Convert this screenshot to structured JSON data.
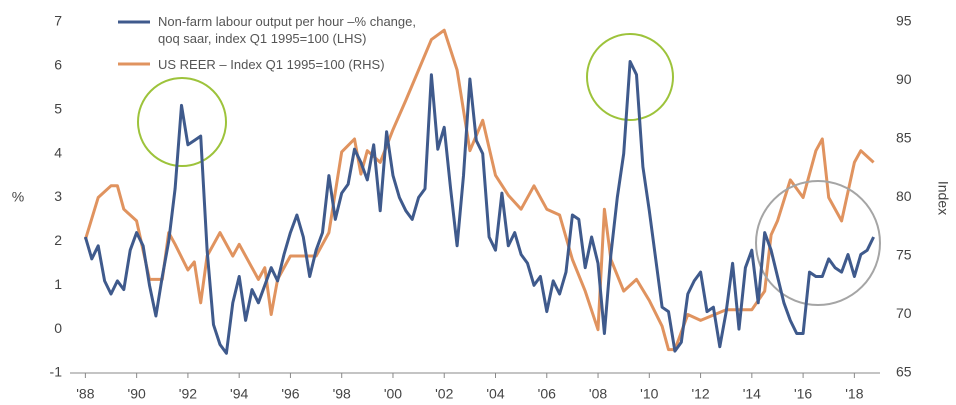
{
  "chart_data": {
    "type": "line",
    "ylabel": "%",
    "y2label": "Index",
    "xlim": [
      1987.4,
      2019.0
    ],
    "xticks": [
      {
        "value": 1988,
        "label": "'88"
      },
      {
        "value": 1990,
        "label": "'90"
      },
      {
        "value": 1992,
        "label": "'92"
      },
      {
        "value": 1994,
        "label": "'94"
      },
      {
        "value": 1996,
        "label": "'96"
      },
      {
        "value": 1998,
        "label": "'98"
      },
      {
        "value": 2000,
        "label": "'00"
      },
      {
        "value": 2002,
        "label": "'02"
      },
      {
        "value": 2004,
        "label": "'04"
      },
      {
        "value": 2006,
        "label": "'06"
      },
      {
        "value": 2008,
        "label": "'08"
      },
      {
        "value": 2010,
        "label": "'10"
      },
      {
        "value": 2012,
        "label": "'12"
      },
      {
        "value": 2014,
        "label": "'14"
      },
      {
        "value": 2016,
        "label": "'16"
      },
      {
        "value": 2018,
        "label": "'18"
      }
    ],
    "ylim": [
      -1,
      7
    ],
    "yticks": [
      -1,
      0,
      1,
      2,
      3,
      4,
      5,
      6,
      7
    ],
    "y2lim": [
      65,
      95
    ],
    "y2ticks": [
      65,
      70,
      75,
      80,
      85,
      90,
      95
    ],
    "grid": false,
    "legend": "upper left",
    "series": [
      {
        "name": "Non-farm labour output per hour –% change, qoq saar, index Q1 1995=100 (LHS)",
        "color": "#3f5a8c",
        "axis": "y",
        "x": [
          1988,
          1988.25,
          1988.5,
          1988.75,
          1989,
          1989.25,
          1989.5,
          1989.75,
          1990,
          1990.25,
          1990.5,
          1990.75,
          1991,
          1991.25,
          1991.5,
          1991.75,
          1992,
          1992.25,
          1992.5,
          1992.75,
          1993,
          1993.25,
          1993.5,
          1993.75,
          1994,
          1994.25,
          1994.5,
          1994.75,
          1995,
          1995.25,
          1995.5,
          1995.75,
          1996,
          1996.25,
          1996.5,
          1996.75,
          1997,
          1997.25,
          1997.5,
          1997.75,
          1998,
          1998.25,
          1998.5,
          1998.75,
          1999,
          1999.25,
          1999.5,
          1999.75,
          2000,
          2000.25,
          2000.5,
          2000.75,
          2001,
          2001.25,
          2001.5,
          2001.75,
          2002,
          2002.25,
          2002.5,
          2002.75,
          2003,
          2003.25,
          2003.5,
          2003.75,
          2004,
          2004.25,
          2004.5,
          2004.75,
          2005,
          2005.25,
          2005.5,
          2005.75,
          2006,
          2006.25,
          2006.5,
          2006.75,
          2007,
          2007.25,
          2007.5,
          2007.75,
          2008,
          2008.25,
          2008.5,
          2008.75,
          2009,
          2009.25,
          2009.5,
          2009.75,
          2010,
          2010.25,
          2010.5,
          2010.75,
          2011,
          2011.25,
          2011.5,
          2011.75,
          2012,
          2012.25,
          2012.5,
          2012.75,
          2013,
          2013.25,
          2013.5,
          2013.75,
          2014,
          2014.25,
          2014.5,
          2014.75,
          2015,
          2015.25,
          2015.5,
          2015.75,
          2016,
          2016.25,
          2016.5,
          2016.75,
          2017,
          2017.25,
          2017.5,
          2017.75,
          2018,
          2018.25,
          2018.5,
          2018.75
        ],
        "values": [
          2.1,
          1.6,
          1.9,
          1.1,
          0.8,
          1.1,
          0.9,
          1.8,
          2.2,
          1.9,
          1.0,
          0.3,
          1.2,
          2.0,
          3.2,
          5.1,
          4.2,
          4.3,
          4.4,
          1.8,
          0.1,
          -0.35,
          -0.55,
          0.6,
          1.2,
          0.2,
          0.9,
          0.6,
          1.0,
          1.4,
          1.1,
          1.7,
          2.2,
          2.6,
          2.1,
          1.2,
          1.8,
          2.2,
          3.5,
          2.5,
          3.1,
          3.3,
          4.1,
          3.8,
          3.4,
          4.2,
          2.7,
          4.5,
          3.5,
          3.0,
          2.7,
          2.5,
          3.0,
          3.2,
          5.8,
          4.1,
          4.6,
          3.2,
          1.9,
          3.5,
          5.7,
          4.3,
          4.0,
          2.1,
          1.8,
          3.1,
          1.9,
          2.2,
          1.7,
          1.5,
          1.0,
          1.2,
          0.4,
          1.1,
          0.8,
          1.3,
          2.6,
          2.5,
          1.4,
          2.1,
          1.5,
          -0.1,
          1.7,
          3.0,
          4.0,
          6.1,
          5.8,
          3.7,
          2.7,
          1.6,
          0.5,
          0.4,
          -0.5,
          -0.3,
          0.8,
          1.1,
          1.3,
          0.4,
          0.5,
          -0.4,
          0.4,
          1.5,
          0,
          1.4,
          1.8,
          0.6,
          2.2,
          1.8,
          1.2,
          0.6,
          0.2,
          -0.1,
          -0.1,
          1.3,
          1.2,
          1.2,
          1.6,
          1.4,
          1.3,
          1.7,
          1.2,
          1.7,
          1.8,
          2.1
        ]
      },
      {
        "name": "US REER – Index Q1 1995=100 (RHS)",
        "color": "#e0935f",
        "axis": "y2",
        "x": [
          1988,
          1988.5,
          1989,
          1989.25,
          1989.5,
          1990,
          1990.5,
          1991,
          1991.25,
          1991.5,
          1992,
          1992.25,
          1992.5,
          1992.75,
          1993.25,
          1993.75,
          1994,
          1994.5,
          1994.75,
          1995,
          1995.25,
          1995.5,
          1996,
          1996.5,
          1997,
          1997.5,
          1998,
          1998.5,
          1998.75,
          1999,
          1999.5,
          2000,
          2000.5,
          2001,
          2001.5,
          2002,
          2002.5,
          2003,
          2003.5,
          2004,
          2004.5,
          2005,
          2005.5,
          2006,
          2006.5,
          2007,
          2007.5,
          2008,
          2008.25,
          2008.5,
          2009,
          2009.5,
          2010,
          2010.5,
          2010.75,
          2011,
          2011.5,
          2012,
          2013,
          2014,
          2014.5,
          2014.75,
          2015,
          2015.5,
          2016,
          2016.5,
          2016.75,
          2017,
          2017.5,
          2018,
          2018.25,
          2018.75
        ],
        "values": [
          76.4,
          80,
          81,
          81,
          79,
          78,
          73,
          73,
          77,
          76,
          73.8,
          74.5,
          71,
          75,
          77,
          75,
          76,
          74,
          73,
          74,
          70,
          73,
          75,
          75,
          75,
          77,
          83.9,
          85,
          82,
          84,
          83,
          85.8,
          88.3,
          90.9,
          93.5,
          94.3,
          90.9,
          84,
          86.6,
          81.9,
          80.2,
          79,
          81,
          79,
          78.5,
          74.7,
          72,
          68.7,
          79,
          74.7,
          72,
          73,
          71.2,
          69,
          67,
          67,
          70,
          69.5,
          70.4,
          70.4,
          72,
          76.8,
          78,
          81.5,
          80,
          84,
          85,
          80,
          78,
          83,
          84,
          83
        ]
      }
    ]
  }
}
